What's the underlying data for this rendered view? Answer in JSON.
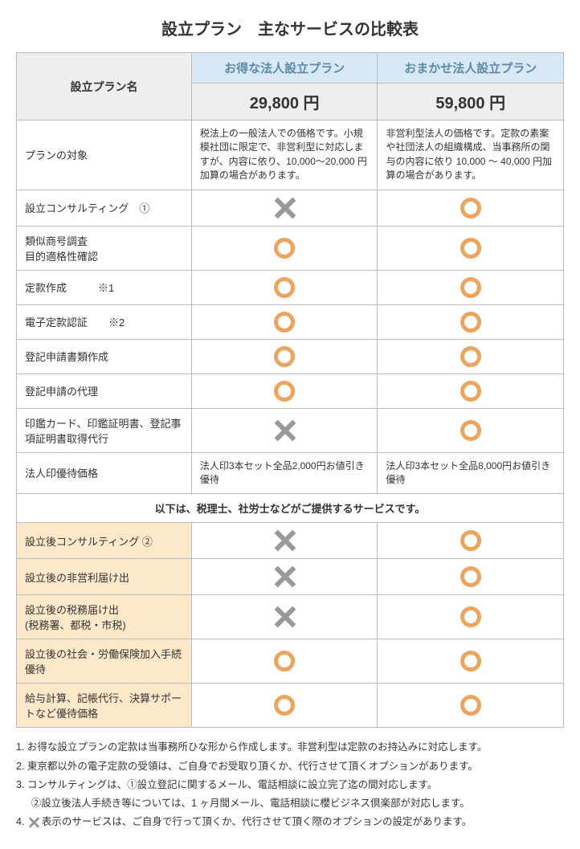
{
  "title": "設立プラン　主なサービスの比較表",
  "header": {
    "plan_name_label": "設立プラン名",
    "plan_a": "お得な法人設立プラン",
    "plan_b": "おまかせ法人設立プラン",
    "price_a": "29,800 円",
    "price_b": "59,800 円"
  },
  "colors": {
    "header_blue_bg": "#d9e8f5",
    "header_blue_text": "#5b8aa8",
    "header_gray_bg": "#eeeeee",
    "border": "#bbbbbb",
    "circle": "#eca55f",
    "cross": "#999999",
    "yellow_bg": "#fde9c9",
    "text": "#333333"
  },
  "rows": {
    "r1": {
      "label": "プランの対象",
      "a": "税法上の一般法人での価格です。小規模社団に限定で、非営利型に対応しますが、内容に依り、10,000～20,000 円加算の場合があります。",
      "b": "非営利型法人の価格です。定款の素案や社団法人の組織構成、当事務所の関与の内容に依り 10,000 ～ 40,000 円加算の場合があります。"
    },
    "r2": {
      "label": "設立コンサルティング　①"
    },
    "r3": {
      "label": "類似商号調査\n目的適格性確認"
    },
    "r4": {
      "label": "定款作成　　　※1"
    },
    "r5": {
      "label": "電子定款認証　　※2"
    },
    "r6": {
      "label": "登記申請書類作成"
    },
    "r7": {
      "label": "登記申請の代理"
    },
    "r8": {
      "label": "印鑑カード、印鑑証明書、登記事項証明書取得代行"
    },
    "r9": {
      "label": "法人印優待価格",
      "a": "法人印3本セット全品2,000円お値引き優待",
      "b": "法人印3本セット全品8,000円お値引き優待"
    },
    "sub": "以下は、税理士、社労士などがご提供するサービスです。",
    "r10": {
      "label": "設立後コンサルティング ②"
    },
    "r11": {
      "label": "設立後の非営利届け出"
    },
    "r12": {
      "label": "設立後の税務届け出\n(税務署、都税・市税)"
    },
    "r13": {
      "label": "設立後の社会・労働保険加入手続優待"
    },
    "r14": {
      "label": "給与計算、記帳代行、決算サポートなど優待価格"
    }
  },
  "notes": {
    "n1": "1. お得な設立プランの定款は当事務所ひな形から作成します。非営利型は定款のお持込みに対応します。",
    "n2": "2. 東京都以外の電子定款の受領は、ご自身でお受取り頂くか、代行させて頂くオプションがあります。",
    "n3": "3. コンサルティングは、①設立登記に関するメール、電話相談に設立完了迄の間対応します。",
    "n3b": "②設立後法人手続き等については、1 ヶ月間メール、電話相談に櫻ビジネス倶楽部が対応します。",
    "n4a": "4. ",
    "n4b": "表示のサービスは、ご自身で行って頂くか、代行させて頂く際のオプションの設定があります。"
  }
}
